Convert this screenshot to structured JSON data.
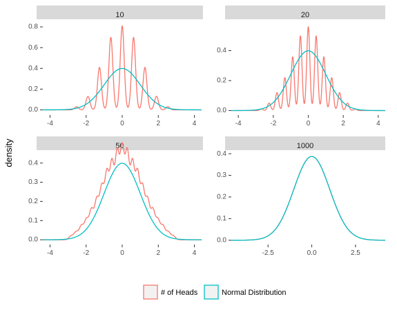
{
  "chart_data": {
    "type": "line",
    "ylabel": "density",
    "xlabel": "",
    "legend_position": "bottom",
    "colors": {
      "heads": "#F8766D",
      "normal": "#00BFC4"
    },
    "legend": [
      {
        "key": "heads",
        "label": "# of Heads",
        "color": "#F8766D"
      },
      {
        "key": "normal",
        "label": "Normal Distribution",
        "color": "#00BFC4"
      }
    ],
    "panels": [
      {
        "title": "10",
        "xlim": [
          -4.4,
          4.4
        ],
        "ylim": [
          -0.05,
          0.86
        ],
        "xticks": [
          -4,
          -2,
          0,
          2,
          4
        ],
        "yticks": [
          0.0,
          0.2,
          0.4,
          0.6,
          0.8
        ],
        "xticklabels": [
          "-4",
          "-2",
          "0",
          "2",
          "4"
        ],
        "yticklabels": [
          "0.0",
          "0.2",
          "0.4",
          "0.6",
          "0.8"
        ],
        "peaks": [
          [
            -2.53,
            0.03
          ],
          [
            -1.9,
            0.13
          ],
          [
            -1.26,
            0.41
          ],
          [
            -0.63,
            0.7
          ],
          [
            0.0,
            0.81
          ],
          [
            0.63,
            0.7
          ],
          [
            1.26,
            0.41
          ],
          [
            1.9,
            0.13
          ],
          [
            2.53,
            0.03
          ]
        ],
        "peak_width": 0.11,
        "normal_sd": 1.0
      },
      {
        "title": "20",
        "xlim": [
          -4.4,
          4.4
        ],
        "ylim": [
          -0.03,
          0.6
        ],
        "xticks": [
          -4,
          -2,
          0,
          2,
          4
        ],
        "yticks": [
          0.0,
          0.2,
          0.4
        ],
        "xticklabels": [
          "-4",
          "-2",
          "0",
          "2",
          "4"
        ],
        "yticklabels": [
          "0.0",
          "0.2",
          "0.4"
        ],
        "peaks": [
          [
            -2.68,
            0.01
          ],
          [
            -2.24,
            0.05
          ],
          [
            -1.79,
            0.12
          ],
          [
            -1.34,
            0.22
          ],
          [
            -0.89,
            0.36
          ],
          [
            -0.45,
            0.5
          ],
          [
            0.0,
            0.56
          ],
          [
            0.45,
            0.5
          ],
          [
            0.89,
            0.36
          ],
          [
            1.34,
            0.22
          ],
          [
            1.79,
            0.12
          ],
          [
            2.24,
            0.05
          ],
          [
            2.68,
            0.01
          ]
        ],
        "peak_width": 0.09,
        "normal_sd": 1.0
      },
      {
        "title": "50",
        "xlim": [
          -4.4,
          4.4
        ],
        "ylim": [
          -0.025,
          0.46
        ],
        "xticks": [
          -4,
          -2,
          0,
          2,
          4
        ],
        "yticks": [
          0.0,
          0.1,
          0.2,
          0.3,
          0.4
        ],
        "xticklabels": [
          "-4",
          "-2",
          "0",
          "2",
          "4"
        ],
        "yticklabels": [
          "0.0",
          "0.1",
          "0.2",
          "0.3",
          "0.4"
        ],
        "peaks": [
          [
            -2.83,
            0.02
          ],
          [
            -2.55,
            0.04
          ],
          [
            -2.26,
            0.07
          ],
          [
            -1.98,
            0.1
          ],
          [
            -1.7,
            0.15
          ],
          [
            -1.41,
            0.2
          ],
          [
            -1.13,
            0.26
          ],
          [
            -0.85,
            0.33
          ],
          [
            -0.57,
            0.38
          ],
          [
            -0.28,
            0.43
          ],
          [
            0.0,
            0.45
          ],
          [
            0.28,
            0.43
          ],
          [
            0.57,
            0.38
          ],
          [
            0.85,
            0.33
          ],
          [
            1.13,
            0.26
          ],
          [
            1.41,
            0.2
          ],
          [
            1.7,
            0.15
          ],
          [
            1.98,
            0.1
          ],
          [
            2.26,
            0.07
          ],
          [
            2.55,
            0.04
          ],
          [
            2.83,
            0.02
          ]
        ],
        "peak_width": 0.12,
        "normal_sd": 1.0
      },
      {
        "title": "1000",
        "xlim": [
          -4.6,
          4.2
        ],
        "ylim": [
          -0.02,
          0.41
        ],
        "xticks": [
          -2.5,
          0.0,
          2.5
        ],
        "yticks": [
          0.0,
          0.1,
          0.2,
          0.3,
          0.4
        ],
        "xticklabels": [
          "-2.5",
          "0.0",
          "2.5"
        ],
        "yticklabels": [
          "0.0",
          "0.1",
          "0.2",
          "0.3",
          "0.4"
        ],
        "peaks": [],
        "peak_width": 0.0,
        "normal_sd": 1.03,
        "heads_sd": 1.03
      }
    ]
  }
}
